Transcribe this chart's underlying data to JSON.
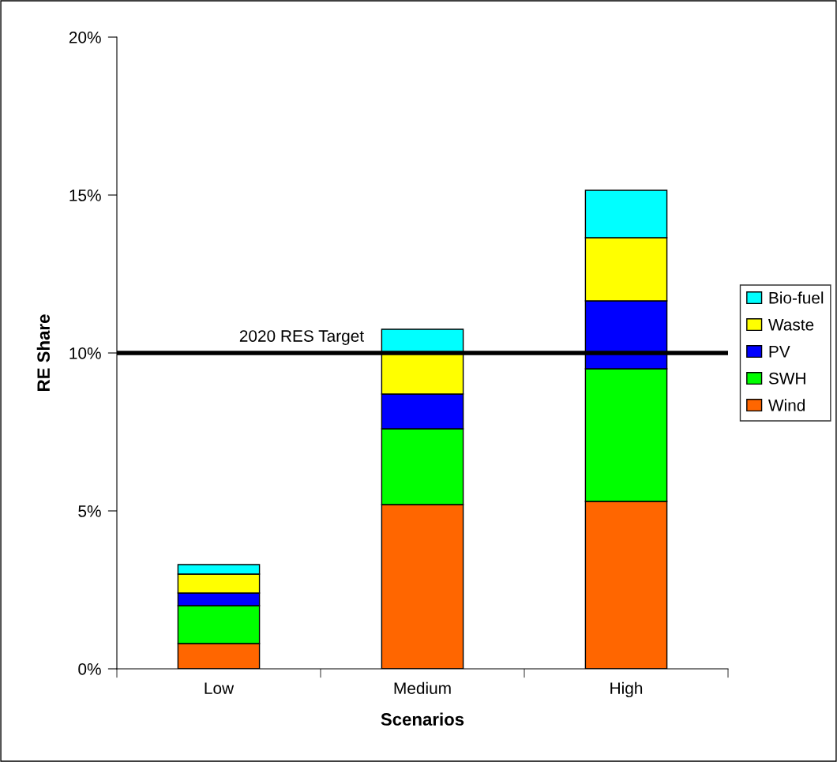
{
  "chart_data": {
    "type": "bar",
    "stacked": true,
    "xlabel": "Scenarios",
    "ylabel": "RE Share",
    "categories": [
      "Low",
      "Medium",
      "High"
    ],
    "series": [
      {
        "name": "Wind",
        "color": "#ff6600",
        "values": [
          0.8,
          5.2,
          5.3
        ]
      },
      {
        "name": "SWH",
        "color": "#00ff00",
        "values": [
          1.2,
          2.4,
          4.2
        ]
      },
      {
        "name": "PV",
        "color": "#0000ff",
        "values": [
          0.4,
          1.1,
          2.15
        ]
      },
      {
        "name": "Waste",
        "color": "#ffff00",
        "values": [
          0.6,
          1.3,
          2.0
        ]
      },
      {
        "name": "Bio-fuel",
        "color": "#00ffff",
        "values": [
          0.3,
          0.75,
          1.5
        ]
      }
    ],
    "ylim": [
      0,
      20
    ],
    "yticks": [
      {
        "value": 0,
        "label": "0%"
      },
      {
        "value": 5,
        "label": "5%"
      },
      {
        "value": 10,
        "label": "10%"
      },
      {
        "value": 15,
        "label": "15%"
      },
      {
        "value": 20,
        "label": "20%"
      }
    ],
    "ref_lines": [
      {
        "axis": "y",
        "value": 10,
        "label": "2020 RES Target",
        "color": "#000000",
        "line_style": "solid"
      }
    ],
    "legend": "right",
    "grid": false
  }
}
